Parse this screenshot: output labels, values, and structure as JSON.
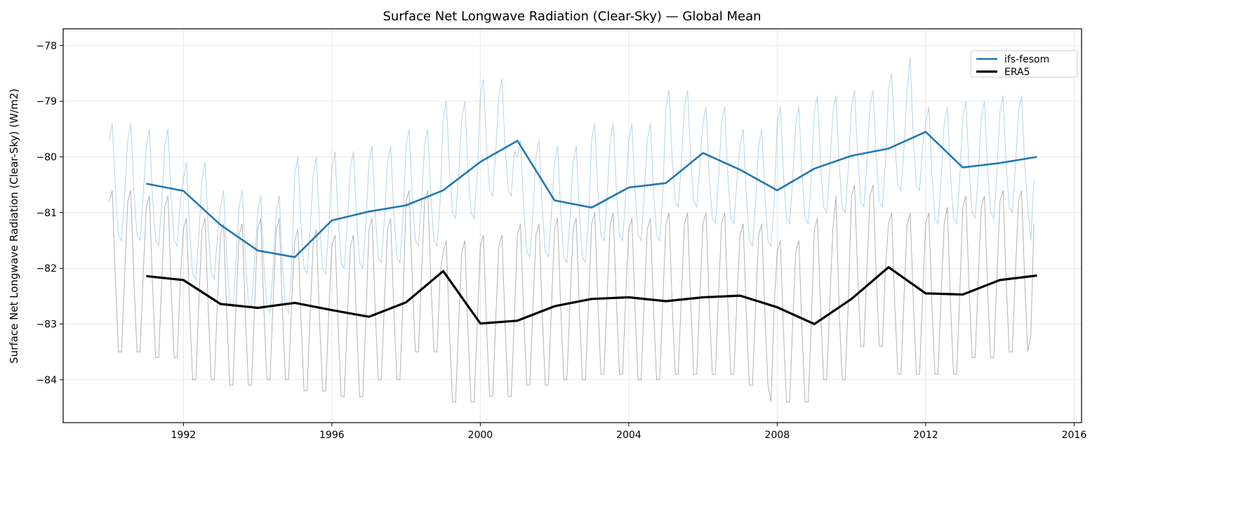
{
  "chart_data": {
    "type": "line",
    "title": "Surface Net Longwave Radiation (Clear-Sky) — Global Mean",
    "xlabel": "",
    "ylabel": "Surface Net Longwave Radiation (Clear-Sky) (W/m2)",
    "xlim": [
      1988.76,
      2016.2
    ],
    "ylim": [
      -84.77,
      -77.7
    ],
    "xticks": [
      1992,
      1996,
      2000,
      2004,
      2008,
      2012,
      2016
    ],
    "yticks": [
      -84,
      -83,
      -82,
      -81,
      -80,
      -79,
      -78
    ],
    "ytick_labels": [
      "−84",
      "−83",
      "−82",
      "−81",
      "−80",
      "−79",
      "−78"
    ],
    "grid": true,
    "legend_placement": "upper-right",
    "annual_x": [
      1991,
      1992,
      1993,
      1994,
      1995,
      1996,
      1997,
      1998,
      1999,
      2000,
      2001,
      2002,
      2003,
      2004,
      2005,
      2006,
      2007,
      2008,
      2009,
      2010,
      2011,
      2012,
      2013,
      2014,
      2015
    ],
    "monthly_x_start": 1990.0,
    "series": [
      {
        "name": "ifs-fesom",
        "color": "#1f77b4",
        "annual": [
          -80.48,
          -80.61,
          -81.22,
          -81.68,
          -81.8,
          -81.14,
          -80.98,
          -80.87,
          -80.6,
          -80.09,
          -79.71,
          -80.78,
          -80.91,
          -80.55,
          -80.47,
          -79.93,
          -80.23,
          -80.6,
          -80.21,
          -79.98,
          -79.85,
          -79.55,
          -80.19,
          -80.11,
          -80.0
        ],
        "monthly": [
          -79.7,
          -79.4,
          -80.6,
          -81.4,
          -81.5,
          -80.7,
          -79.7,
          -79.4,
          -80.6,
          -81.4,
          -81.5,
          -80.7,
          -79.8,
          -79.5,
          -80.7,
          -81.5,
          -81.6,
          -80.8,
          -79.8,
          -79.5,
          -80.7,
          -81.5,
          -81.6,
          -80.8,
          -80.4,
          -80.1,
          -81.3,
          -82.1,
          -82.2,
          -81.4,
          -80.4,
          -80.1,
          -81.3,
          -82.1,
          -82.2,
          -81.4,
          -80.9,
          -80.6,
          -81.8,
          -82.6,
          -82.7,
          -81.9,
          -80.9,
          -80.6,
          -81.8,
          -82.6,
          -82.7,
          -81.9,
          -81.0,
          -80.7,
          -81.9,
          -82.7,
          -82.8,
          -82.0,
          -81.0,
          -80.7,
          -81.9,
          -82.7,
          -82.8,
          -82.0,
          -80.3,
          -80.0,
          -81.2,
          -82.0,
          -82.1,
          -81.3,
          -80.3,
          -80.0,
          -81.2,
          -82.0,
          -82.1,
          -81.3,
          -80.2,
          -79.9,
          -81.1,
          -81.9,
          -82.0,
          -81.2,
          -80.2,
          -79.9,
          -81.1,
          -81.9,
          -82.0,
          -81.2,
          -80.1,
          -79.8,
          -81.0,
          -81.8,
          -81.9,
          -81.1,
          -80.1,
          -79.8,
          -81.0,
          -81.8,
          -81.9,
          -81.1,
          -79.8,
          -79.5,
          -80.7,
          -81.5,
          -81.6,
          -80.8,
          -79.8,
          -79.5,
          -80.7,
          -81.5,
          -81.6,
          -80.8,
          -79.3,
          -79.0,
          -80.2,
          -81.0,
          -81.1,
          -80.3,
          -79.3,
          -79.0,
          -80.2,
          -81.0,
          -81.1,
          -80.3,
          -78.9,
          -78.6,
          -79.8,
          -80.6,
          -80.7,
          -79.9,
          -78.9,
          -78.6,
          -79.8,
          -80.6,
          -80.7,
          -79.9,
          -80.0,
          -79.7,
          -80.9,
          -81.7,
          -81.8,
          -81.0,
          -80.0,
          -79.7,
          -80.9,
          -81.7,
          -81.8,
          -81.0,
          -80.1,
          -79.8,
          -81.0,
          -81.8,
          -81.9,
          -81.1,
          -80.1,
          -79.8,
          -81.0,
          -81.8,
          -81.9,
          -81.1,
          -79.7,
          -79.4,
          -80.6,
          -81.4,
          -81.5,
          -80.7,
          -79.7,
          -79.4,
          -80.6,
          -81.4,
          -81.5,
          -80.7,
          -79.7,
          -79.4,
          -80.6,
          -81.4,
          -81.5,
          -80.7,
          -79.7,
          -79.4,
          -80.6,
          -81.4,
          -81.5,
          -80.7,
          -79.1,
          -78.8,
          -80.0,
          -80.8,
          -80.9,
          -80.1,
          -79.1,
          -78.8,
          -80.0,
          -80.8,
          -80.9,
          -80.1,
          -79.4,
          -79.1,
          -80.3,
          -81.1,
          -81.2,
          -80.4,
          -79.4,
          -79.1,
          -80.3,
          -81.1,
          -81.2,
          -80.4,
          -79.8,
          -79.5,
          -80.7,
          -81.5,
          -81.6,
          -80.8,
          -79.8,
          -79.5,
          -80.7,
          -81.5,
          -81.6,
          -80.8,
          -79.4,
          -79.1,
          -80.3,
          -81.1,
          -81.2,
          -80.4,
          -79.4,
          -79.1,
          -80.3,
          -81.1,
          -81.2,
          -80.4,
          -79.2,
          -78.9,
          -80.1,
          -80.9,
          -81.0,
          -80.2,
          -79.2,
          -78.9,
          -80.1,
          -80.9,
          -81.0,
          -80.2,
          -79.1,
          -78.8,
          -80.0,
          -80.8,
          -80.9,
          -80.1,
          -79.1,
          -78.8,
          -80.0,
          -80.8,
          -80.9,
          -80.1,
          -78.8,
          -78.5,
          -79.7,
          -80.5,
          -80.6,
          -79.8,
          -78.8,
          -78.2,
          -79.7,
          -80.5,
          -80.6,
          -79.8,
          -79.4,
          -79.1,
          -80.3,
          -81.1,
          -81.2,
          -80.4,
          -79.4,
          -79.1,
          -80.3,
          -81.1,
          -81.2,
          -80.4,
          -79.3,
          -79.0,
          -80.2,
          -81.0,
          -81.1,
          -80.3,
          -79.3,
          -79.0,
          -80.2,
          -81.0,
          -81.1,
          -80.3,
          -79.2,
          -78.9,
          -80.1,
          -80.9,
          -81.0,
          -80.2,
          -79.2,
          -78.9,
          -80.1,
          -80.9,
          -81.5,
          -80.4
        ]
      },
      {
        "name": "ERA5",
        "color": "#000000",
        "annual": [
          -82.14,
          -82.21,
          -82.64,
          -82.71,
          -82.62,
          -82.75,
          -82.87,
          -82.61,
          -82.05,
          -82.99,
          -82.94,
          -82.68,
          -82.55,
          -82.52,
          -82.59,
          -82.52,
          -82.49,
          -82.7,
          -83.0,
          -82.55,
          -81.98,
          -82.45,
          -82.47,
          -82.21,
          -82.13
        ],
        "monthly": [
          -80.8,
          -80.6,
          -82.2,
          -83.5,
          -83.5,
          -82.1,
          -80.8,
          -80.6,
          -82.2,
          -83.5,
          -83.5,
          -82.1,
          -80.9,
          -80.7,
          -82.3,
          -83.6,
          -83.6,
          -82.2,
          -80.9,
          -80.7,
          -82.3,
          -83.6,
          -83.6,
          -82.2,
          -81.3,
          -81.1,
          -82.7,
          -84.0,
          -84.0,
          -82.6,
          -81.3,
          -81.1,
          -82.7,
          -84.0,
          -84.0,
          -82.6,
          -81.4,
          -81.2,
          -82.8,
          -84.1,
          -84.1,
          -82.7,
          -81.4,
          -81.2,
          -82.8,
          -84.1,
          -84.1,
          -82.7,
          -81.3,
          -81.1,
          -82.7,
          -84.0,
          -84.0,
          -82.6,
          -81.3,
          -81.1,
          -82.7,
          -84.0,
          -84.0,
          -82.6,
          -81.5,
          -81.3,
          -82.9,
          -84.2,
          -84.2,
          -82.8,
          -81.5,
          -81.3,
          -82.9,
          -84.2,
          -84.2,
          -82.8,
          -81.6,
          -81.4,
          -83.0,
          -84.3,
          -84.3,
          -82.9,
          -81.6,
          -81.4,
          -83.0,
          -84.3,
          -84.3,
          -82.9,
          -81.3,
          -81.1,
          -82.7,
          -84.0,
          -84.0,
          -82.6,
          -81.3,
          -81.1,
          -82.7,
          -84.0,
          -84.0,
          -82.6,
          -80.8,
          -80.6,
          -82.2,
          -83.5,
          -83.5,
          -82.1,
          -80.8,
          -80.6,
          -82.2,
          -83.5,
          -83.5,
          -82.1,
          -81.7,
          -81.5,
          -83.1,
          -84.4,
          -84.4,
          -83.0,
          -81.7,
          -81.5,
          -83.1,
          -84.4,
          -84.4,
          -83.0,
          -81.6,
          -81.4,
          -83.0,
          -84.3,
          -84.3,
          -82.9,
          -81.6,
          -81.4,
          -83.0,
          -84.3,
          -84.3,
          -82.9,
          -81.4,
          -81.2,
          -82.8,
          -84.1,
          -84.1,
          -82.7,
          -81.4,
          -81.2,
          -82.8,
          -84.1,
          -84.1,
          -82.7,
          -81.3,
          -81.1,
          -82.7,
          -84.0,
          -84.0,
          -82.6,
          -81.3,
          -81.1,
          -82.7,
          -84.0,
          -84.0,
          -82.6,
          -81.2,
          -81.0,
          -82.6,
          -83.9,
          -83.9,
          -82.5,
          -81.2,
          -81.0,
          -82.6,
          -83.9,
          -83.9,
          -82.5,
          -81.3,
          -81.1,
          -82.7,
          -84.0,
          -84.0,
          -82.6,
          -81.3,
          -81.1,
          -82.7,
          -84.0,
          -84.0,
          -82.6,
          -81.2,
          -81.0,
          -82.6,
          -83.9,
          -83.9,
          -82.5,
          -81.2,
          -81.0,
          -82.6,
          -83.9,
          -83.9,
          -82.5,
          -81.2,
          -81.0,
          -82.6,
          -83.9,
          -83.9,
          -82.5,
          -81.2,
          -81.0,
          -82.6,
          -83.9,
          -83.9,
          -82.5,
          -81.4,
          -81.2,
          -82.8,
          -84.1,
          -84.1,
          -82.7,
          -81.4,
          -81.2,
          -82.8,
          -84.1,
          -84.4,
          -82.7,
          -81.7,
          -81.5,
          -83.1,
          -84.4,
          -84.4,
          -83.0,
          -81.7,
          -81.5,
          -83.1,
          -84.4,
          -84.4,
          -83.0,
          -81.3,
          -81.1,
          -82.7,
          -84.0,
          -84.0,
          -82.6,
          -81.3,
          -80.7,
          -82.7,
          -84.0,
          -84.0,
          -82.6,
          -80.7,
          -80.5,
          -82.1,
          -83.4,
          -83.4,
          -82.0,
          -80.7,
          -80.5,
          -82.1,
          -83.4,
          -83.4,
          -82.0,
          -81.2,
          -81.0,
          -82.6,
          -83.9,
          -83.9,
          -82.5,
          -81.2,
          -81.0,
          -82.6,
          -83.9,
          -83.9,
          -82.5,
          -81.2,
          -81.0,
          -82.6,
          -83.9,
          -83.9,
          -82.5,
          -81.2,
          -80.9,
          -82.6,
          -83.9,
          -83.9,
          -82.5,
          -80.9,
          -80.7,
          -82.3,
          -83.6,
          -83.6,
          -82.2,
          -80.9,
          -80.7,
          -82.3,
          -83.6,
          -83.6,
          -82.2,
          -80.8,
          -80.6,
          -82.2,
          -83.5,
          -83.5,
          -82.1,
          -80.8,
          -80.6,
          -82.2,
          -83.5,
          -83.2,
          -81.2
        ]
      }
    ]
  }
}
